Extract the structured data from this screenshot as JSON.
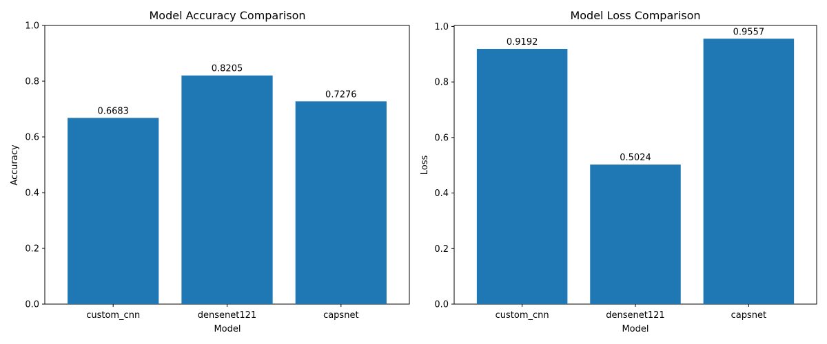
{
  "bar_color": "#1f77b4",
  "chart_data": [
    {
      "type": "bar",
      "title": "Model Accuracy Comparison",
      "xlabel": "Model",
      "ylabel": "Accuracy",
      "categories": [
        "custom_cnn",
        "densenet121",
        "capsnet"
      ],
      "values": [
        0.6683,
        0.8205,
        0.7276
      ],
      "value_labels": [
        "0.6683",
        "0.8205",
        "0.7276"
      ],
      "ylim": [
        0,
        1.0
      ],
      "yticks": [
        0.0,
        0.2,
        0.4,
        0.6,
        0.8,
        1.0
      ],
      "ytick_labels": [
        "0.0",
        "0.2",
        "0.4",
        "0.6",
        "0.8",
        "1.0"
      ],
      "grid": false,
      "legend": "none"
    },
    {
      "type": "bar",
      "title": "Model Loss Comparison",
      "xlabel": "Model",
      "ylabel": "Loss",
      "categories": [
        "custom_cnn",
        "densenet121",
        "capsnet"
      ],
      "values": [
        0.9192,
        0.5024,
        0.9557
      ],
      "value_labels": [
        "0.9192",
        "0.5024",
        "0.9557"
      ],
      "ylim": [
        0,
        1.0035
      ],
      "yticks": [
        0.0,
        0.2,
        0.4,
        0.6,
        0.8,
        1.0
      ],
      "ytick_labels": [
        "0.0",
        "0.2",
        "0.4",
        "0.6",
        "0.8",
        "1.0"
      ],
      "grid": false,
      "legend": "none"
    }
  ]
}
